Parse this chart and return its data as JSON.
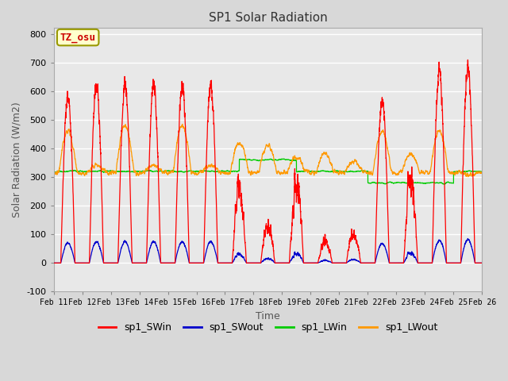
{
  "title": "SP1 Solar Radiation",
  "xlabel": "Time",
  "ylabel": "Solar Radiation (W/m2)",
  "ylim": [
    -100,
    820
  ],
  "yticks": [
    -100,
    0,
    100,
    200,
    300,
    400,
    500,
    600,
    700,
    800
  ],
  "x_tick_labels": [
    "Feb 11",
    "Feb 12",
    "Feb 13",
    "Feb 14",
    "Feb 15",
    "Feb 16",
    "Feb 17",
    "Feb 18",
    "Feb 19",
    "Feb 20",
    "Feb 21",
    "Feb 22",
    "Feb 23",
    "Feb 24",
    "Feb 25",
    "Feb 26"
  ],
  "legend_labels": [
    "sp1_SWin",
    "sp1_SWout",
    "sp1_LWin",
    "sp1_LWout"
  ],
  "line_colors": [
    "#ff0000",
    "#0000cc",
    "#00cc00",
    "#ff9900"
  ],
  "tz_label": "TZ_osu",
  "outer_bg_color": "#d8d8d8",
  "plot_bg_color": "#e8e8e8",
  "grid_color": "#ffffff",
  "n_days": 15,
  "pts_per_day": 288,
  "figsize": [
    6.4,
    4.8
  ],
  "dpi": 100
}
